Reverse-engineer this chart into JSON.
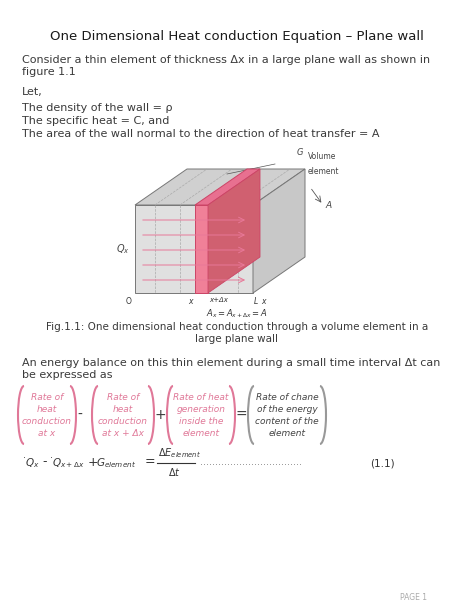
{
  "title": "One Dimensional Heat conduction Equation – Plane wall",
  "intro_text": "Consider a thin element of thickness Δx in a large plane wall as shown in\nfigure 1.1",
  "let_text": "Let,",
  "density_text": "The density of the wall = ρ",
  "specific_heat_text": "The specific heat = C, and",
  "area_text": "The area of the wall normal to the direction of heat transfer = A",
  "fig_caption": "Fig.1.1: One dimensional heat conduction through a volume element in a\nlarge plane wall",
  "energy_text": "An energy balance on this thin element during a small time interval Δt can\nbe expressed as",
  "box1_lines": [
    "Rate of",
    "heat",
    "conduction",
    "at x"
  ],
  "box2_lines": [
    "Rate of",
    "heat",
    "conduction",
    "at x + Δx"
  ],
  "box3_lines": [
    "Rate of heat",
    "generation",
    "inside the",
    "element"
  ],
  "box4_lines": [
    "Rate of chane",
    "of the energy",
    "content of the",
    "element"
  ],
  "page_text": "PAGE 1",
  "bg_color": "#ffffff",
  "text_color": "#3a3a3a",
  "title_color": "#1a1a1a",
  "pink": "#e07898",
  "gray_border": "#999999",
  "gray_text": "#444444",
  "eq_color": "#333333",
  "arrow_color": "#e87898",
  "box_face": "#fce8ef"
}
